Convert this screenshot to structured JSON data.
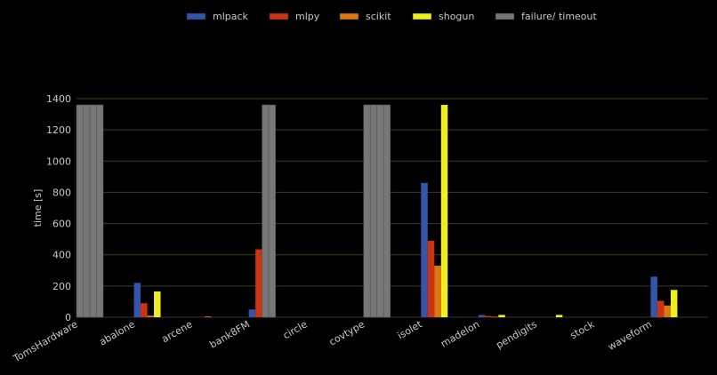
{
  "chart_data": {
    "type": "bar",
    "title": "",
    "xlabel": "",
    "ylabel": "time [s]",
    "ylim": [
      0,
      1400
    ],
    "yticks": [
      0,
      200,
      400,
      600,
      800,
      1000,
      1200,
      1400
    ],
    "grid": true,
    "legend_position": "top",
    "categories": [
      "TomsHardware",
      "abalone",
      "arcene",
      "bank8FM",
      "circle",
      "covtype",
      "isolet",
      "madelon",
      "pendigits",
      "stock",
      "waveform"
    ],
    "series": [
      {
        "name": "mlpack",
        "color": "#3355aa",
        "values": [
          0,
          220,
          0,
          50,
          0,
          0,
          860,
          15,
          0,
          0,
          260
        ]
      },
      {
        "name": "mlpy",
        "color": "#cc3311",
        "values": [
          0,
          90,
          0,
          435,
          0,
          0,
          490,
          8,
          0,
          0,
          105
        ]
      },
      {
        "name": "scikit",
        "color": "#dd7711",
        "values": [
          0,
          10,
          5,
          0,
          0,
          0,
          330,
          3,
          0,
          0,
          75
        ]
      },
      {
        "name": "shogun",
        "color": "#eeee22",
        "values": [
          0,
          165,
          0,
          0,
          0,
          0,
          1360,
          15,
          15,
          0,
          175
        ]
      }
    ],
    "failure_series": {
      "name": "failure/ timeout",
      "color": "#777777"
    },
    "failures": [
      {
        "category": "TomsHardware",
        "series": [
          "mlpack",
          "mlpy",
          "scikit",
          "shogun"
        ]
      },
      {
        "category": "bank8FM",
        "series": [
          "scikit",
          "shogun"
        ]
      },
      {
        "category": "covtype",
        "series": [
          "mlpack",
          "mlpy",
          "scikit",
          "shogun"
        ]
      }
    ],
    "failure_value": 1360
  }
}
